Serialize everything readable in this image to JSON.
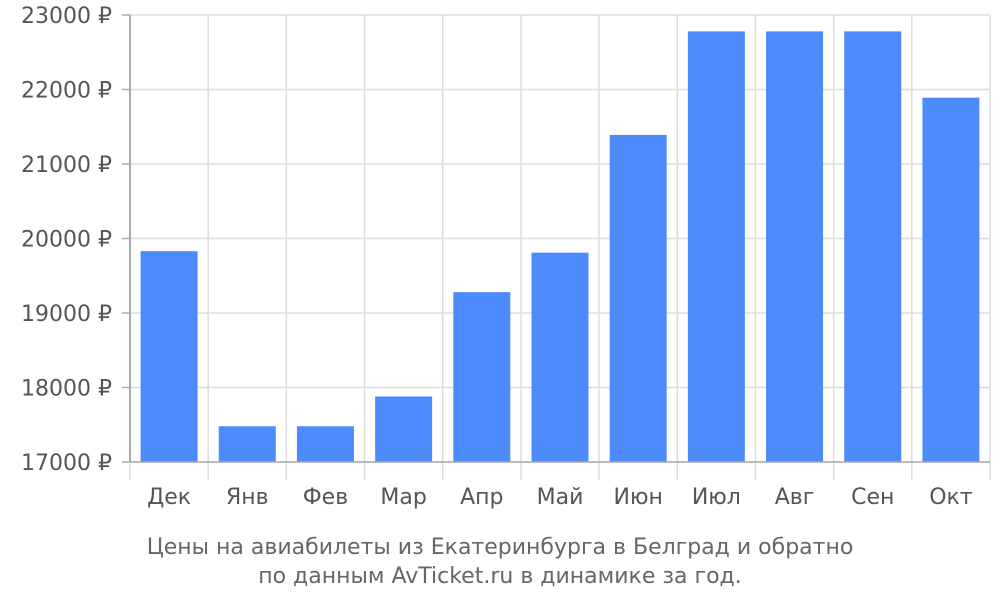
{
  "chart_data": {
    "type": "bar",
    "categories": [
      "Дек",
      "Янв",
      "Фев",
      "Мар",
      "Апр",
      "Май",
      "Июн",
      "Июл",
      "Авг",
      "Сен",
      "Окт"
    ],
    "values": [
      19830,
      17480,
      17480,
      17880,
      19280,
      19810,
      21390,
      22780,
      22780,
      22780,
      21890
    ],
    "ylim": [
      17000,
      23000
    ],
    "yticks": [
      "17000 ₽",
      "18000 ₽",
      "19000 ₽",
      "20000 ₽",
      "21000 ₽",
      "22000 ₽",
      "23000 ₽"
    ],
    "ytick_values": [
      17000,
      18000,
      19000,
      20000,
      21000,
      22000,
      23000
    ],
    "grid": true,
    "bar_color": "#4d8afb",
    "grid_color": "#dddddd",
    "axis_color": "#aaaaaa"
  },
  "caption": {
    "line1": "Цены на авиабилеты из Екатеринбурга в Белград и обратно",
    "line2": "по данным AvTicket.ru в динамике за год."
  }
}
